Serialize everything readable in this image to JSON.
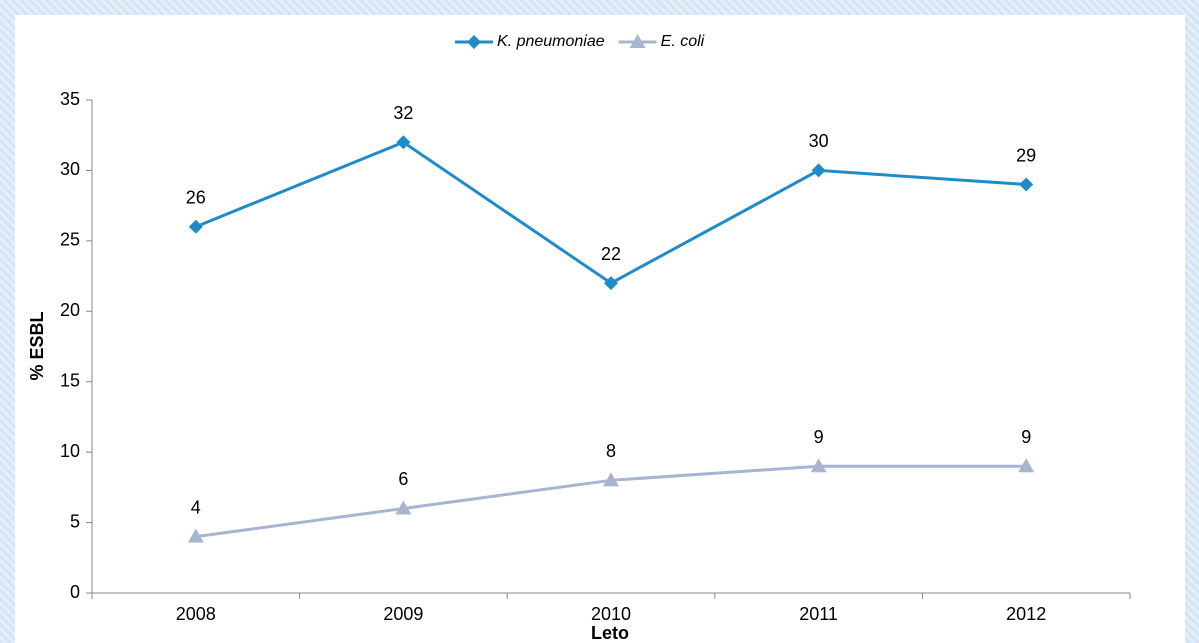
{
  "chart_data": {
    "type": "line",
    "categories": [
      "2008",
      "2009",
      "2010",
      "2011",
      "2012"
    ],
    "series": [
      {
        "name": "K. pneumoniae",
        "color": "#1f8bc8",
        "marker": "diamond",
        "values": [
          26,
          32,
          22,
          30,
          29
        ]
      },
      {
        "name": "E. coli",
        "color": "#a7b4d2",
        "marker": "triangle",
        "values": [
          4,
          6,
          8,
          9,
          9
        ]
      }
    ],
    "ylim": [
      0,
      35
    ],
    "yticks": [
      0,
      5,
      10,
      15,
      20,
      25,
      30,
      35
    ],
    "y_label": "% ESBL",
    "x_label": "Leto",
    "legend": "top",
    "grid": false
  }
}
